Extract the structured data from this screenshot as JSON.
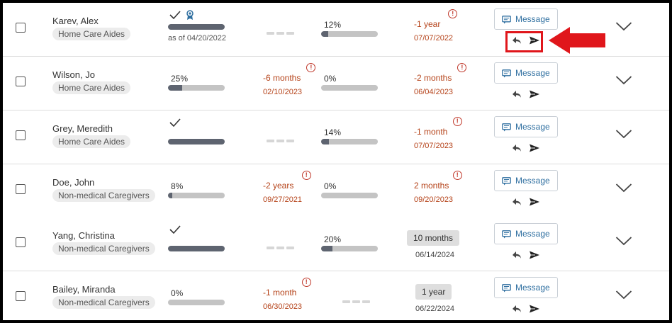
{
  "rows": [
    {
      "name": "Karev, Alex",
      "role": "Home Care Aides",
      "col1": {
        "kind": "complete-award",
        "fill": 1.0,
        "sub": "as of 04/20/2022"
      },
      "col2": {
        "kind": "none"
      },
      "col3": {
        "kind": "progress",
        "pct": "12%",
        "fill": 0.12
      },
      "col4": {
        "kind": "overdue",
        "rel": "-1 year",
        "date": "07/07/2022"
      },
      "message_label": "Message"
    },
    {
      "name": "Wilson, Jo",
      "role": "Home Care Aides",
      "col1": {
        "kind": "progress",
        "pct": "25%",
        "fill": 0.25
      },
      "col2": {
        "kind": "overdue",
        "rel": "-6 months",
        "date": "02/10/2023"
      },
      "col3": {
        "kind": "progress",
        "pct": "0%",
        "fill": 0.0
      },
      "col4": {
        "kind": "overdue",
        "rel": "-2 months",
        "date": "06/04/2023"
      },
      "message_label": "Message"
    },
    {
      "name": "Grey, Meredith",
      "role": "Home Care Aides",
      "col1": {
        "kind": "complete",
        "fill": 1.0
      },
      "col2": {
        "kind": "none"
      },
      "col3": {
        "kind": "progress",
        "pct": "14%",
        "fill": 0.14
      },
      "col4": {
        "kind": "overdue",
        "rel": "-1 month",
        "date": "07/07/2023"
      },
      "message_label": "Message"
    },
    {
      "name": "Doe, John",
      "role": "Non-medical Caregivers",
      "col1": {
        "kind": "progress",
        "pct": "8%",
        "fill": 0.08
      },
      "col2": {
        "kind": "overdue",
        "rel": "-2 years",
        "date": "09/27/2021"
      },
      "col3": {
        "kind": "progress",
        "pct": "0%",
        "fill": 0.0
      },
      "col4": {
        "kind": "overdue",
        "rel": "2 months",
        "date": "09/20/2023"
      },
      "message_label": "Message"
    },
    {
      "name": "Yang, Christina",
      "role": "Non-medical Caregivers",
      "col1": {
        "kind": "complete",
        "fill": 1.0
      },
      "col2": {
        "kind": "none"
      },
      "col3": {
        "kind": "progress",
        "pct": "20%",
        "fill": 0.2
      },
      "col4": {
        "kind": "chip",
        "rel": "10 months",
        "date": "06/14/2024"
      },
      "message_label": "Message"
    },
    {
      "name": "Bailey, Miranda",
      "role": "Non-medical Caregivers",
      "col1": {
        "kind": "progress",
        "pct": "0%",
        "fill": 0.0
      },
      "col2": {
        "kind": "overdue",
        "rel": "-1 month",
        "date": "06/30/2023"
      },
      "col3": {
        "kind": "none"
      },
      "col4": {
        "kind": "chip",
        "rel": "1 year",
        "date": "06/22/2024"
      },
      "message_label": "Message"
    }
  ],
  "icons": {
    "message": "message-icon",
    "reply": "reply-icon",
    "send": "send-icon",
    "expand": "chevron-down-icon",
    "alert": "alert-circle-icon",
    "award": "award-icon"
  },
  "colors": {
    "overdue": "#b5431a",
    "alert": "#c0392b",
    "link": "#2f6fa0",
    "bar_fill": "#5e6470",
    "bar_track": "#c4c4c4",
    "highlight": "#e0161b"
  }
}
